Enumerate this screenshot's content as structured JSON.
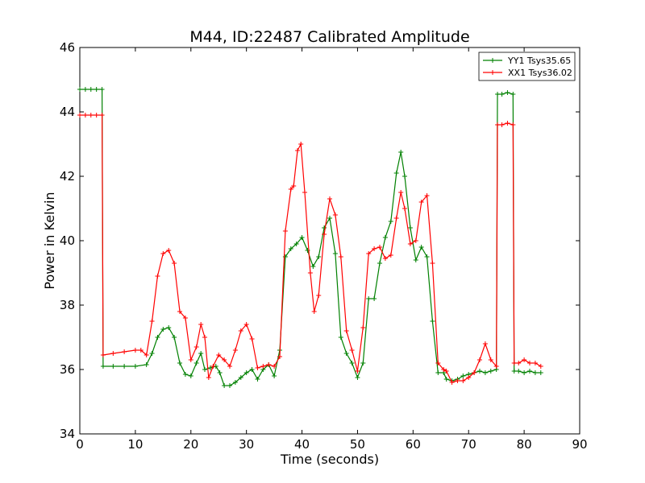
{
  "chart_data": {
    "type": "line",
    "title": "M44, ID:22487 Calibrated Amplitude",
    "xlabel": "Time (seconds)",
    "ylabel": "Power in Kelvin",
    "xlim": [
      0,
      90
    ],
    "ylim": [
      34,
      46
    ],
    "xticks": [
      0,
      10,
      20,
      30,
      40,
      50,
      60,
      70,
      80,
      90
    ],
    "yticks": [
      34,
      36,
      38,
      40,
      42,
      44,
      46
    ],
    "xtick_labels": [
      "0",
      "10",
      "20",
      "30",
      "40",
      "50",
      "60",
      "70",
      "80",
      "90"
    ],
    "ytick_labels": [
      "34",
      "36",
      "38",
      "40",
      "42",
      "44",
      "46"
    ],
    "grid": false,
    "legend_position": "top-right",
    "marker": "+",
    "series": [
      {
        "name": "YY1 Tsys35.65",
        "color": "#008000",
        "points": [
          [
            0,
            44.7
          ],
          [
            1,
            44.7
          ],
          [
            2,
            44.7
          ],
          [
            3,
            44.7
          ],
          [
            4,
            44.7
          ],
          [
            4.2,
            36.1
          ],
          [
            6,
            36.1
          ],
          [
            8,
            36.1
          ],
          [
            10,
            36.1
          ],
          [
            12,
            36.15
          ],
          [
            13,
            36.5
          ],
          [
            14,
            37.0
          ],
          [
            15,
            37.25
          ],
          [
            16,
            37.3
          ],
          [
            17,
            37.0
          ],
          [
            18,
            36.2
          ],
          [
            19,
            35.85
          ],
          [
            20,
            35.8
          ],
          [
            21,
            36.2
          ],
          [
            21.8,
            36.5
          ],
          [
            22.5,
            36.0
          ],
          [
            23.5,
            36.05
          ],
          [
            24.5,
            36.1
          ],
          [
            25.2,
            35.9
          ],
          [
            26,
            35.5
          ],
          [
            27,
            35.5
          ],
          [
            28,
            35.6
          ],
          [
            29,
            35.75
          ],
          [
            30,
            35.9
          ],
          [
            31,
            36.0
          ],
          [
            32,
            35.7
          ],
          [
            33,
            36.0
          ],
          [
            34,
            36.15
          ],
          [
            35,
            35.8
          ],
          [
            36,
            36.6
          ],
          [
            37,
            39.5
          ],
          [
            38,
            39.75
          ],
          [
            39,
            39.9
          ],
          [
            40,
            40.1
          ],
          [
            41,
            39.7
          ],
          [
            42,
            39.2
          ],
          [
            43,
            39.5
          ],
          [
            44,
            40.4
          ],
          [
            45,
            40.7
          ],
          [
            46,
            39.6
          ],
          [
            47,
            37.0
          ],
          [
            48,
            36.5
          ],
          [
            49,
            36.2
          ],
          [
            50,
            35.75
          ],
          [
            51,
            36.2
          ],
          [
            52,
            38.2
          ],
          [
            53,
            38.2
          ],
          [
            54,
            39.3
          ],
          [
            55,
            40.1
          ],
          [
            56,
            40.6
          ],
          [
            57,
            42.1
          ],
          [
            57.8,
            42.75
          ],
          [
            58.5,
            42.0
          ],
          [
            59.5,
            40.4
          ],
          [
            60.5,
            39.4
          ],
          [
            61.5,
            39.8
          ],
          [
            62.5,
            39.5
          ],
          [
            63.5,
            37.5
          ],
          [
            64.5,
            35.9
          ],
          [
            65.5,
            35.9
          ],
          [
            66,
            35.7
          ],
          [
            67,
            35.65
          ],
          [
            68,
            35.7
          ],
          [
            69,
            35.8
          ],
          [
            70,
            35.85
          ],
          [
            71,
            35.9
          ],
          [
            72,
            35.95
          ],
          [
            73,
            35.9
          ],
          [
            74,
            35.95
          ],
          [
            75,
            36.0
          ],
          [
            75.2,
            44.55
          ],
          [
            76,
            44.55
          ],
          [
            77,
            44.6
          ],
          [
            78,
            44.55
          ],
          [
            78.2,
            35.95
          ],
          [
            79,
            35.95
          ],
          [
            80,
            35.9
          ],
          [
            81,
            35.95
          ],
          [
            82,
            35.9
          ],
          [
            83,
            35.9
          ]
        ]
      },
      {
        "name": "XX1 Tsys36.02",
        "color": "#ff0000",
        "points": [
          [
            0,
            43.9
          ],
          [
            1,
            43.9
          ],
          [
            2,
            43.9
          ],
          [
            3,
            43.9
          ],
          [
            4,
            43.9
          ],
          [
            4.2,
            36.45
          ],
          [
            6,
            36.5
          ],
          [
            8,
            36.55
          ],
          [
            10,
            36.6
          ],
          [
            11,
            36.6
          ],
          [
            12,
            36.45
          ],
          [
            13,
            37.5
          ],
          [
            14,
            38.9
          ],
          [
            15,
            39.6
          ],
          [
            16,
            39.7
          ],
          [
            17,
            39.3
          ],
          [
            18,
            37.8
          ],
          [
            19,
            37.6
          ],
          [
            20,
            36.3
          ],
          [
            21,
            36.7
          ],
          [
            21.8,
            37.4
          ],
          [
            22.5,
            37.0
          ],
          [
            23.2,
            35.75
          ],
          [
            24,
            36.1
          ],
          [
            25,
            36.45
          ],
          [
            26,
            36.3
          ],
          [
            27,
            36.1
          ],
          [
            28,
            36.6
          ],
          [
            29,
            37.2
          ],
          [
            30,
            37.4
          ],
          [
            31,
            36.95
          ],
          [
            32,
            36.05
          ],
          [
            33,
            36.1
          ],
          [
            34,
            36.15
          ],
          [
            35,
            36.1
          ],
          [
            36,
            36.4
          ],
          [
            37,
            40.3
          ],
          [
            38,
            41.6
          ],
          [
            38.5,
            41.7
          ],
          [
            39.2,
            42.8
          ],
          [
            39.8,
            43.0
          ],
          [
            40.5,
            41.5
          ],
          [
            41.5,
            39.0
          ],
          [
            42.2,
            37.8
          ],
          [
            43,
            38.3
          ],
          [
            44,
            40.2
          ],
          [
            45,
            41.3
          ],
          [
            46,
            40.8
          ],
          [
            47,
            39.5
          ],
          [
            48,
            37.2
          ],
          [
            49,
            36.6
          ],
          [
            50,
            35.95
          ],
          [
            51,
            37.3
          ],
          [
            52,
            39.6
          ],
          [
            53,
            39.75
          ],
          [
            54,
            39.8
          ],
          [
            55,
            39.45
          ],
          [
            56,
            39.55
          ],
          [
            57,
            40.7
          ],
          [
            57.8,
            41.5
          ],
          [
            58.5,
            41.0
          ],
          [
            59.5,
            39.9
          ],
          [
            60.5,
            40.0
          ],
          [
            61.5,
            41.2
          ],
          [
            62.5,
            41.4
          ],
          [
            63.5,
            39.3
          ],
          [
            64.5,
            36.2
          ],
          [
            65.5,
            36.0
          ],
          [
            66,
            35.95
          ],
          [
            67,
            35.6
          ],
          [
            68,
            35.65
          ],
          [
            69,
            35.65
          ],
          [
            70,
            35.75
          ],
          [
            71,
            35.9
          ],
          [
            72,
            36.3
          ],
          [
            73,
            36.8
          ],
          [
            74,
            36.3
          ],
          [
            75,
            36.1
          ],
          [
            75.2,
            43.6
          ],
          [
            76,
            43.6
          ],
          [
            77,
            43.65
          ],
          [
            78,
            43.6
          ],
          [
            78.2,
            36.2
          ],
          [
            79,
            36.2
          ],
          [
            80,
            36.3
          ],
          [
            81,
            36.2
          ],
          [
            82,
            36.2
          ],
          [
            83,
            36.1
          ]
        ]
      }
    ]
  }
}
